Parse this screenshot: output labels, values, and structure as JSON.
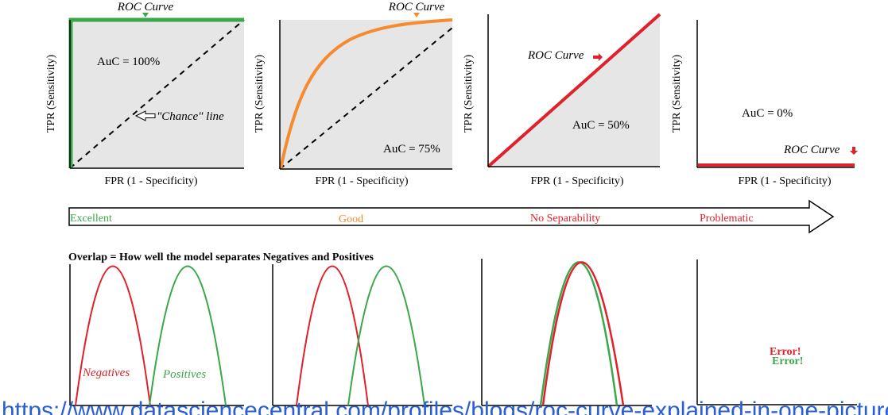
{
  "roc_panels": [
    {
      "ylabel": "TPR (Sensitivity)",
      "xlabel": "FPR (1 - Specificity)",
      "curve_label": "ROC Curve",
      "auc_label": "AuC = 100%",
      "chance_label": "\"Chance\" line"
    },
    {
      "ylabel": "TPR (Sensitivity)",
      "xlabel": "FPR (1 - Specificity)",
      "curve_label": "ROC Curve",
      "auc_label": "AuC = 75%"
    },
    {
      "ylabel": "TPR (Sensitivity)",
      "xlabel": "FPR (1 - Specificity)",
      "curve_label": "ROC Curve",
      "auc_label": "AuC = 50%"
    },
    {
      "ylabel": "TPR (Sensitivity)",
      "xlabel": "FPR (1 - Specificity)",
      "curve_label": "ROC Curve",
      "auc_label": "AuC = 0%"
    }
  ],
  "scale": {
    "labels": [
      "Excellent",
      "Good",
      "No Separability",
      "Problematic"
    ]
  },
  "overlap": {
    "title": "Overlap = How well the model separates Negatives and Positives",
    "negatives_label": "Negatives",
    "positives_label": "Positives",
    "error_label": "Error!"
  },
  "footer": {
    "link_text": "https://www.datasciencecentral.com/profiles/blogs/roc-curve-explained-in-one-picture"
  },
  "colors": {
    "green": "#3aa84a",
    "orange": "#f58a2e",
    "red": "#e0202a",
    "shade": "#e6e6e6",
    "excellent": "#3aa84a",
    "good": "#f58a2e",
    "no_separability": "#e0202a",
    "problematic": "#e0202a",
    "link": "#2a5fd4"
  }
}
